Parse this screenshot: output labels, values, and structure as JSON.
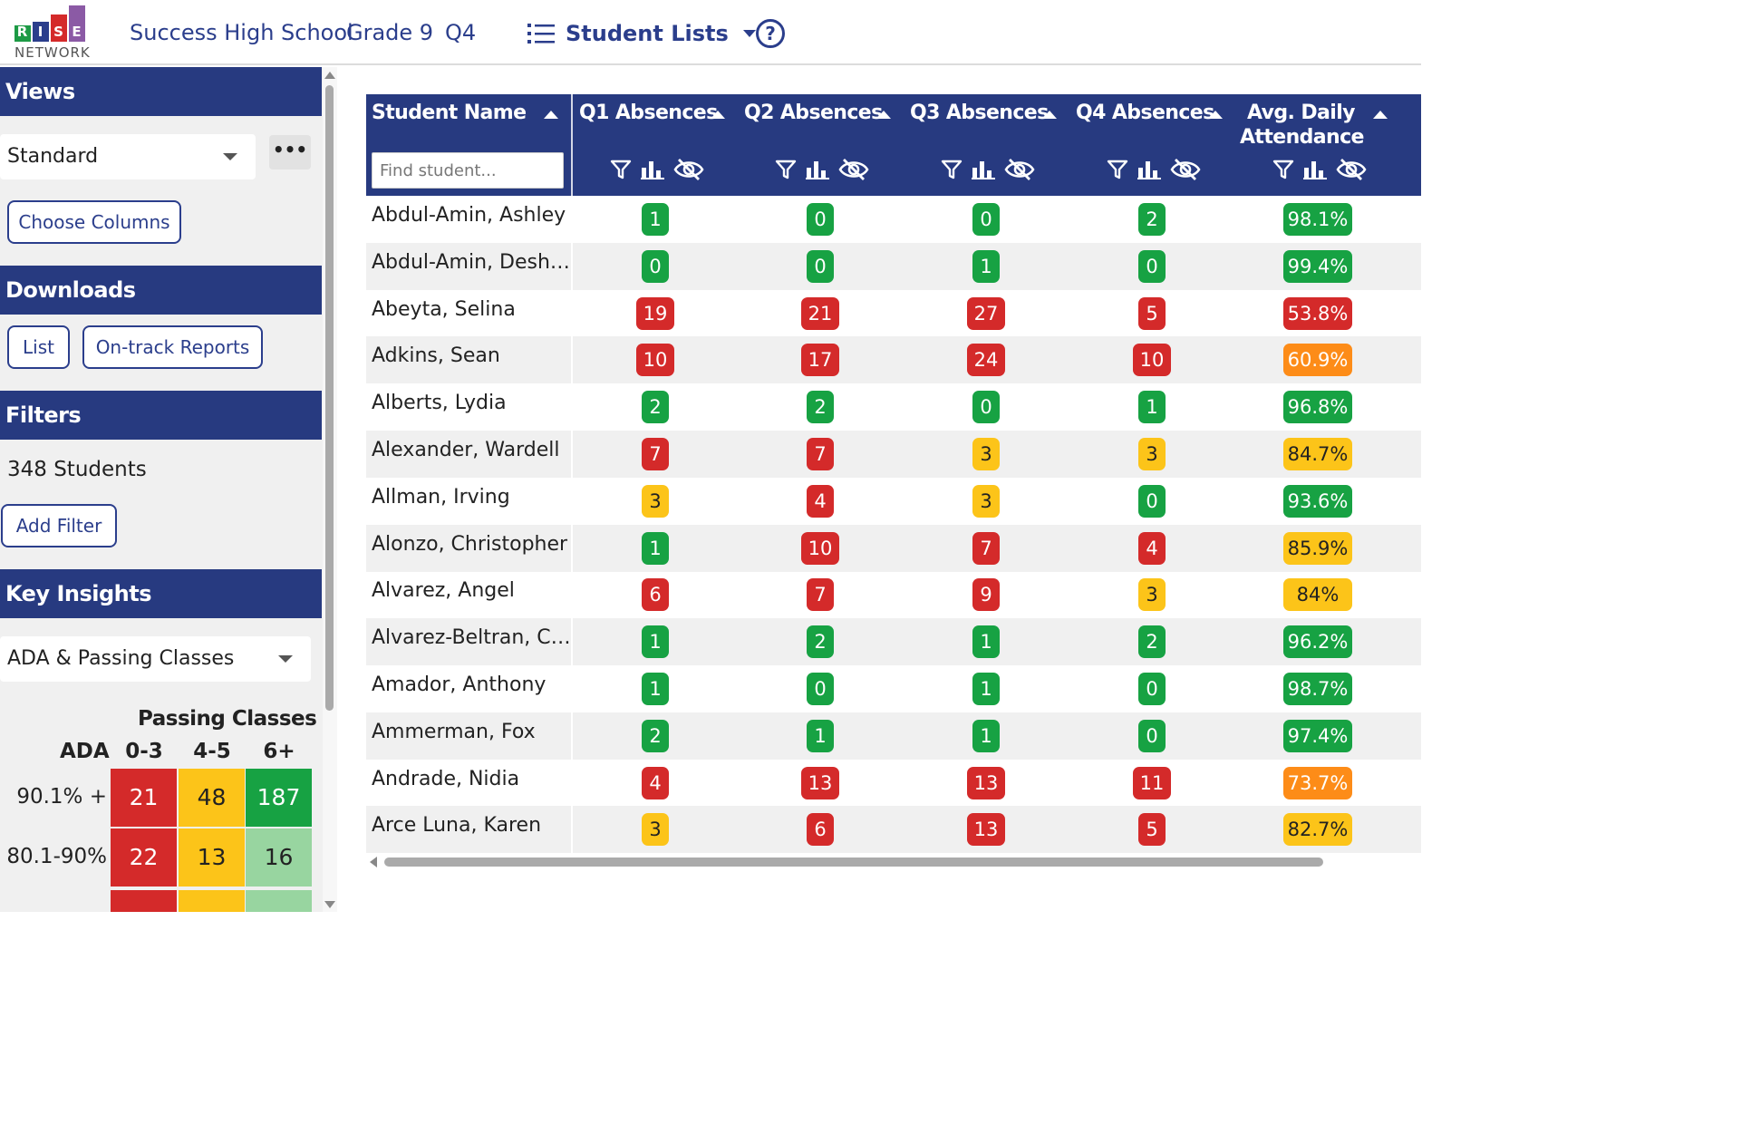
{
  "header": {
    "logo": {
      "letters": [
        "R",
        "I",
        "S",
        "E"
      ],
      "subtitle": "NETWORK"
    },
    "school": "Success High School",
    "grade": "Grade 9",
    "quarter": "Q4",
    "menu_label": "Student Lists",
    "menu_icon": "list-icon",
    "help_icon": "help-circle-icon",
    "help_glyph": "?"
  },
  "sidebar": {
    "views": {
      "title": "Views",
      "selected": "Standard",
      "more_label": "•••",
      "choose_columns": "Choose Columns"
    },
    "downloads": {
      "title": "Downloads",
      "list_button": "List",
      "reports_button": "On-track Reports"
    },
    "filters": {
      "title": "Filters",
      "count": "348 Students",
      "add_filter": "Add Filter"
    },
    "insights": {
      "title": "Key Insights",
      "selected": "ADA & Passing Classes",
      "matrix_title": "Passing Classes",
      "row_header": "ADA",
      "columns": [
        "0-3",
        "4-5",
        "6+"
      ],
      "rows": [
        {
          "label": "90.1% +",
          "values": [
            "21",
            "48",
            "187"
          ],
          "colors": [
            "red",
            "yellow",
            "green"
          ]
        },
        {
          "label": "80.1-90%",
          "values": [
            "22",
            "13",
            "16"
          ],
          "colors": [
            "red",
            "yellow",
            "lightgreen"
          ]
        }
      ]
    }
  },
  "table": {
    "search_placeholder": "Find student...",
    "columns": [
      {
        "label": "Student Name"
      },
      {
        "label": "Q1 Absences"
      },
      {
        "label": "Q2 Absences"
      },
      {
        "label": "Q3 Absences"
      },
      {
        "label": "Q4 Absences"
      },
      {
        "label_line1": "Avg. Daily",
        "label_line2": "Attendance"
      }
    ],
    "rows": [
      {
        "name": "Abdul-Amin, Ashley",
        "q1": "1",
        "q2": "0",
        "q3": "0",
        "q4": "2",
        "ada": "98.1%",
        "c": [
          "green",
          "green",
          "green",
          "green",
          "green"
        ]
      },
      {
        "name": "Abdul-Amin, Desha...",
        "q1": "0",
        "q2": "0",
        "q3": "1",
        "q4": "0",
        "ada": "99.4%",
        "c": [
          "green",
          "green",
          "green",
          "green",
          "green"
        ]
      },
      {
        "name": "Abeyta, Selina",
        "q1": "19",
        "q2": "21",
        "q3": "27",
        "q4": "5",
        "ada": "53.8%",
        "c": [
          "red",
          "red",
          "red",
          "red",
          "red"
        ]
      },
      {
        "name": "Adkins, Sean",
        "q1": "10",
        "q2": "17",
        "q3": "24",
        "q4": "10",
        "ada": "60.9%",
        "c": [
          "red",
          "red",
          "red",
          "red",
          "orange"
        ]
      },
      {
        "name": "Alberts, Lydia",
        "q1": "2",
        "q2": "2",
        "q3": "0",
        "q4": "1",
        "ada": "96.8%",
        "c": [
          "green",
          "green",
          "green",
          "green",
          "green"
        ]
      },
      {
        "name": "Alexander, Wardell",
        "q1": "7",
        "q2": "7",
        "q3": "3",
        "q4": "3",
        "ada": "84.7%",
        "c": [
          "red",
          "red",
          "yellow",
          "yellow",
          "yellow"
        ]
      },
      {
        "name": "Allman, Irving",
        "q1": "3",
        "q2": "4",
        "q3": "3",
        "q4": "0",
        "ada": "93.6%",
        "c": [
          "yellow",
          "red",
          "yellow",
          "green",
          "green"
        ]
      },
      {
        "name": "Alonzo, Christopher",
        "q1": "1",
        "q2": "10",
        "q3": "7",
        "q4": "4",
        "ada": "85.9%",
        "c": [
          "green",
          "red",
          "red",
          "red",
          "yellow"
        ]
      },
      {
        "name": "Alvarez, Angel",
        "q1": "6",
        "q2": "7",
        "q3": "9",
        "q4": "3",
        "ada": "84%",
        "c": [
          "red",
          "red",
          "red",
          "yellow",
          "yellow"
        ]
      },
      {
        "name": "Alvarez-Beltran, Ch...",
        "q1": "1",
        "q2": "2",
        "q3": "1",
        "q4": "2",
        "ada": "96.2%",
        "c": [
          "green",
          "green",
          "green",
          "green",
          "green"
        ]
      },
      {
        "name": "Amador, Anthony",
        "q1": "1",
        "q2": "0",
        "q3": "1",
        "q4": "0",
        "ada": "98.7%",
        "c": [
          "green",
          "green",
          "green",
          "green",
          "green"
        ]
      },
      {
        "name": "Ammerman, Fox",
        "q1": "2",
        "q2": "1",
        "q3": "1",
        "q4": "0",
        "ada": "97.4%",
        "c": [
          "green",
          "green",
          "green",
          "green",
          "green"
        ]
      },
      {
        "name": "Andrade, Nidia",
        "q1": "4",
        "q2": "13",
        "q3": "13",
        "q4": "11",
        "ada": "73.7%",
        "c": [
          "red",
          "red",
          "red",
          "red",
          "orange"
        ]
      },
      {
        "name": "Arce Luna, Karen",
        "q1": "3",
        "q2": "6",
        "q3": "13",
        "q4": "5",
        "ada": "82.7%",
        "c": [
          "yellow",
          "red",
          "red",
          "red",
          "yellow"
        ]
      }
    ]
  },
  "colors": {
    "brand": "#273a80",
    "green": "#17a243",
    "red": "#d42a2a",
    "yellow": "#fcc419",
    "orange": "#fd8c18",
    "lightgreen": "#98d5a0"
  }
}
